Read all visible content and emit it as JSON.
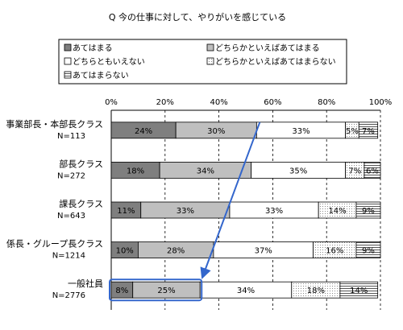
{
  "chart_data": {
    "type": "bar",
    "stacked": true,
    "orientation": "horizontal",
    "percent": true,
    "title": "Q 今の仕事に対して、やりがいを感じている",
    "categories": [
      {
        "name": "事業部長・本部長クラス",
        "n": "N=113"
      },
      {
        "name": "部長クラス",
        "n": "N=272"
      },
      {
        "name": "課長クラス",
        "n": "N=643"
      },
      {
        "name": "係長・グループ長クラス",
        "n": "N=1214"
      },
      {
        "name": "一般社員",
        "n": "N=2776"
      }
    ],
    "series": [
      {
        "name": "あてはまる",
        "color": "#7f7f7f",
        "pattern": "solid-dark",
        "values": [
          24,
          18,
          11,
          10,
          8
        ]
      },
      {
        "name": "どちらかといえばあてはまる",
        "color": "#bfbfbf",
        "pattern": "solid-light",
        "values": [
          30,
          34,
          33,
          28,
          25
        ]
      },
      {
        "name": "どちらともいえない",
        "color": "#ffffff",
        "pattern": "white",
        "values": [
          33,
          35,
          33,
          37,
          34
        ]
      },
      {
        "name": "どちらかといえばあてはまらない",
        "color": "#ffffff",
        "pattern": "dots",
        "values": [
          5,
          7,
          14,
          16,
          18
        ]
      },
      {
        "name": "あてはまらない",
        "color": "#ffffff",
        "pattern": "hlines",
        "values": [
          7,
          6,
          9,
          9,
          14
        ]
      }
    ],
    "xlim": [
      0,
      100
    ],
    "xticks": [
      "0%",
      "20%",
      "40%",
      "60%",
      "80%",
      "100%"
    ],
    "grid": "vertical dashed",
    "legend_position": "top",
    "annotations": {
      "highlight": "一般社員 あてはまる + どちらかといえばあてはまる",
      "arrow": "from 事業部長・本部長クラス to 一般社員",
      "highlight_color": "#3366cc"
    }
  }
}
